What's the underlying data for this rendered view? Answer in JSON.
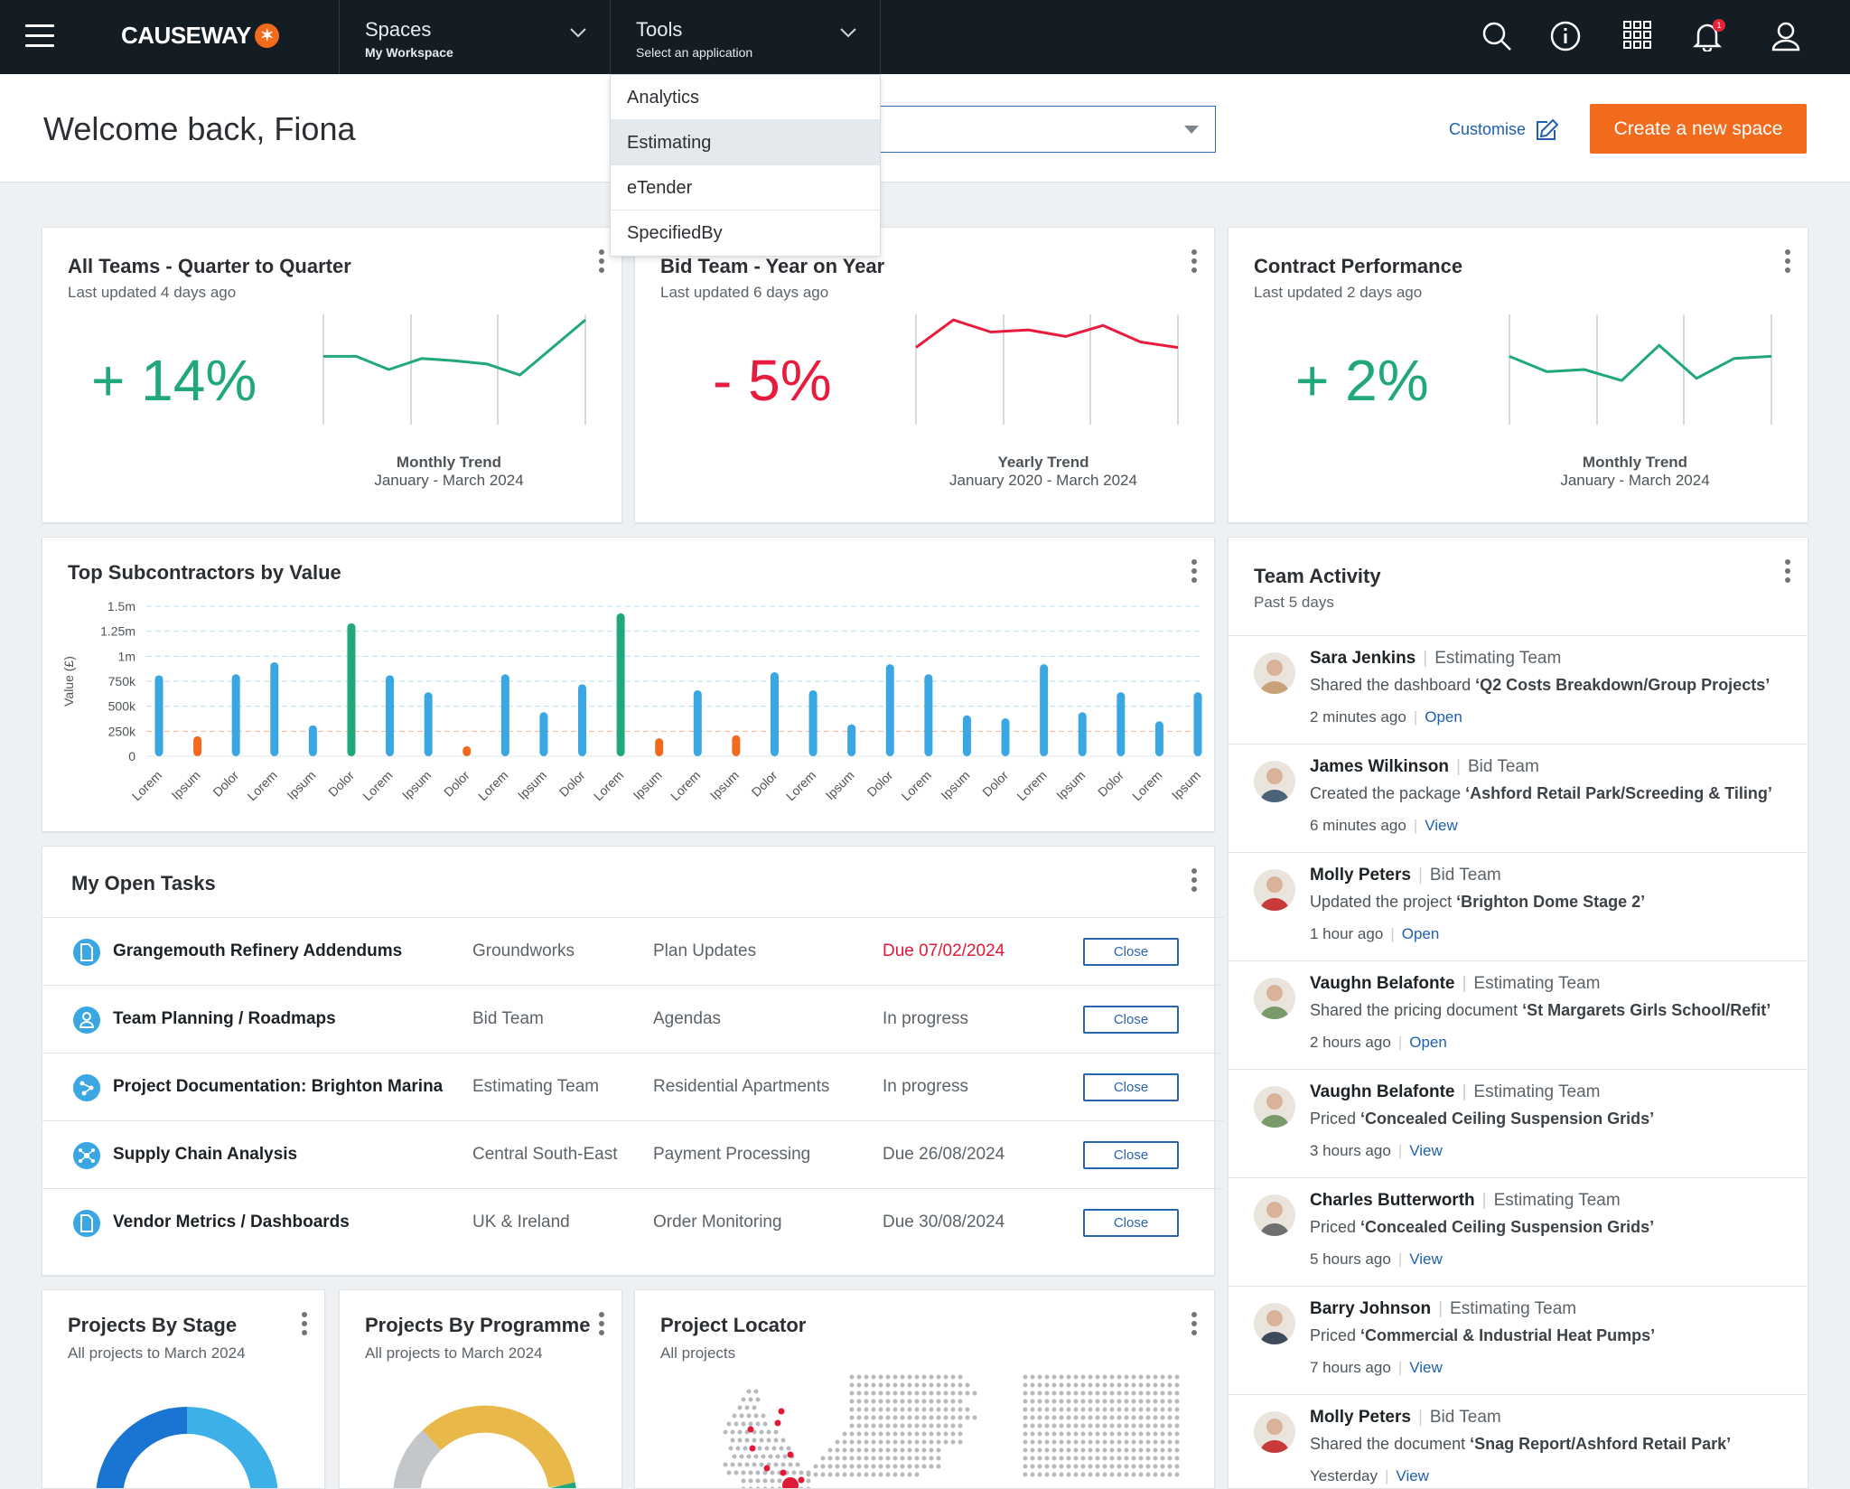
{
  "topbar": {
    "brand": "CAUSEWAY",
    "spaces": {
      "label": "Spaces",
      "value": "My Workspace"
    },
    "tools": {
      "label": "Tools",
      "value": "Select an application"
    },
    "notification_count": "1"
  },
  "tools_menu": {
    "items": [
      "Analytics",
      "Estimating",
      "eTender",
      "SpecifiedBy"
    ],
    "selected": "Estimating"
  },
  "welcome": {
    "greeting": "Welcome back, Fiona",
    "customise_label": "Customise",
    "create_label": "Create a new space"
  },
  "kpis": [
    {
      "title": "All Teams - Quarter to Quarter",
      "updated": "Last updated 4 days ago",
      "value": "+ 14%",
      "trend_label": "Monthly Trend",
      "range": "January - March 2024",
      "direction": "up",
      "color": "#20a77c",
      "points": [
        62,
        62,
        50,
        60,
        58,
        55,
        45,
        70,
        95
      ]
    },
    {
      "title": "Bid Team - Year on Year",
      "updated": "Last updated 6 days ago",
      "value": "- 5%",
      "trend_label": "Yearly Trend",
      "range": "January 2020 - March 2024",
      "direction": "down",
      "color": "#e81b3d",
      "points": [
        70,
        95,
        84,
        86,
        80,
        90,
        75,
        70
      ]
    },
    {
      "title": "Contract Performance",
      "updated": "Last updated 2 days ago",
      "value": "+ 2%",
      "trend_label": "Monthly Trend",
      "range": "January - March 2024",
      "direction": "up",
      "color": "#20a77c",
      "points": [
        62,
        48,
        50,
        40,
        72,
        42,
        60,
        62
      ]
    }
  ],
  "subcontractors": {
    "title": "Top Subcontractors by Value"
  },
  "chart_data": {
    "type": "bar",
    "title": "Top Subcontractors by Value",
    "ylabel": "Value (£)",
    "ylim": [
      0,
      1500000
    ],
    "yticks": [
      "0",
      "250k",
      "500k",
      "750k",
      "1m",
      "1.25m",
      "1.5m"
    ],
    "categories": [
      "Lorem",
      "Ipsum",
      "Dolor",
      "Lorem",
      "Ipsum",
      "Dolor",
      "Lorem",
      "Ipsum",
      "Dolor",
      "Lorem",
      "Ipsum",
      "Dolor",
      "Lorem",
      "Ipsum",
      "Lorem",
      "Ipsum",
      "Dolor",
      "Lorem",
      "Ipsum",
      "Dolor",
      "Lorem",
      "Ipsum",
      "Dolor",
      "Lorem",
      "Ipsum",
      "Dolor",
      "Lorem",
      "Ipsum"
    ],
    "values": [
      810000,
      200000,
      820000,
      940000,
      310000,
      1330000,
      810000,
      640000,
      100000,
      820000,
      440000,
      720000,
      1430000,
      180000,
      660000,
      210000,
      840000,
      660000,
      320000,
      920000,
      820000,
      410000,
      380000,
      920000,
      440000,
      640000,
      350000,
      640000
    ],
    "colors": [
      "#3aa6e2",
      "#f26b1d",
      "#3aa6e2",
      "#3aa6e2",
      "#3aa6e2",
      "#20a77c",
      "#3aa6e2",
      "#3aa6e2",
      "#f26b1d",
      "#3aa6e2",
      "#3aa6e2",
      "#3aa6e2",
      "#20a77c",
      "#f26b1d",
      "#3aa6e2",
      "#f26b1d",
      "#3aa6e2",
      "#3aa6e2",
      "#3aa6e2",
      "#3aa6e2",
      "#3aa6e2",
      "#3aa6e2",
      "#3aa6e2",
      "#3aa6e2",
      "#3aa6e2",
      "#3aa6e2",
      "#3aa6e2",
      "#3aa6e2"
    ]
  },
  "tasks": {
    "title": "My Open Tasks",
    "rows": [
      {
        "name": "Grangemouth Refinery Addendums",
        "team": "Groundworks",
        "category": "Plan Updates",
        "status": "Due 07/02/2024",
        "overdue": true,
        "icon": "document-icon",
        "close": "Close"
      },
      {
        "name": "Team Planning / Roadmaps",
        "team": "Bid Team",
        "category": "Agendas",
        "status": "In progress",
        "overdue": false,
        "icon": "person-icon",
        "close": "Close"
      },
      {
        "name": "Project Documentation: Brighton Marina",
        "team": "Estimating Team",
        "category": "Residential Apartments",
        "status": "In progress",
        "overdue": false,
        "icon": "share-icon",
        "close": "Close"
      },
      {
        "name": "Supply Chain Analysis",
        "team": "Central South-East",
        "category": "Payment Processing",
        "status": "Due 26/08/2024",
        "overdue": false,
        "icon": "network-icon",
        "close": "Close"
      },
      {
        "name": "Vendor Metrics / Dashboards",
        "team": "UK & Ireland",
        "category": "Order Monitoring",
        "status": "Due 30/08/2024",
        "overdue": false,
        "icon": "document-icon",
        "close": "Close"
      }
    ]
  },
  "activity": {
    "title": "Team Activity",
    "sub": "Past 5 days",
    "items": [
      {
        "name": "Sara Jenkins",
        "team": "Estimating Team",
        "action": "Shared the dashboard ",
        "object": "‘Q2 Costs Breakdown/Group Projects’",
        "time": "2 minutes ago",
        "link": "Open",
        "avatar": "#c9a27a"
      },
      {
        "name": "James Wilkinson",
        "team": "Bid Team",
        "action": "Created the package ",
        "object": "‘Ashford Retail Park/Screeding & Tiling’",
        "time": "6 minutes ago",
        "link": "View",
        "avatar": "#4a6378"
      },
      {
        "name": "Molly Peters",
        "team": "Bid Team",
        "action": "Updated the project ",
        "object": "‘Brighton Dome Stage 2’",
        "time": "1 hour ago",
        "link": "Open",
        "avatar": "#c73a3a"
      },
      {
        "name": "Vaughn Belafonte",
        "team": "Estimating Team",
        "action": "Shared the pricing document ",
        "object": "‘St Margarets Girls School/Refit’",
        "time": "2 hours ago",
        "link": "Open",
        "avatar": "#7b9a6c"
      },
      {
        "name": "Vaughn Belafonte",
        "team": "Estimating Team",
        "action": "Priced ",
        "object": "‘Concealed Ceiling Suspension Grids’",
        "time": "3 hours ago",
        "link": "View",
        "avatar": "#7b9a6c"
      },
      {
        "name": "Charles Butterworth",
        "team": "Estimating Team",
        "action": "Priced ",
        "object": "‘Concealed Ceiling Suspension Grids’",
        "time": "5 hours ago",
        "link": "View",
        "avatar": "#6d6f71"
      },
      {
        "name": "Barry Johnson",
        "team": "Estimating Team",
        "action": "Priced ",
        "object": "‘Commercial & Industrial Heat Pumps’",
        "time": "7 hours ago",
        "link": "View",
        "avatar": "#3d4a5a"
      },
      {
        "name": "Molly Peters",
        "team": "Bid Team",
        "action": "Shared the document ",
        "object": "‘Snag Report/Ashford Retail Park’",
        "time": "Yesterday",
        "link": "View",
        "avatar": "#c73a3a"
      }
    ]
  },
  "bottom": {
    "stage": {
      "title": "Projects By Stage",
      "sub": "All projects to March 2024"
    },
    "programme": {
      "title": "Projects By Programme",
      "sub": "All projects to March 2024"
    },
    "locator": {
      "title": "Project Locator",
      "sub": "All projects"
    }
  }
}
